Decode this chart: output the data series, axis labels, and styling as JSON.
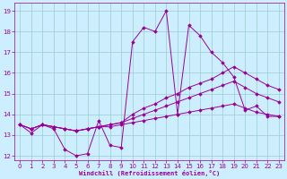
{
  "xlabel": "Windchill (Refroidissement éolien,°C)",
  "background_color": "#cceeff",
  "line_color": "#990099",
  "grid_color": "#99cccc",
  "xlim": [
    -0.5,
    23.5
  ],
  "ylim": [
    11.8,
    19.4
  ],
  "xticks": [
    0,
    1,
    2,
    3,
    4,
    5,
    6,
    7,
    8,
    9,
    10,
    11,
    12,
    13,
    14,
    15,
    16,
    17,
    18,
    19,
    20,
    21,
    22,
    23
  ],
  "yticks": [
    12,
    13,
    14,
    15,
    16,
    17,
    18,
    19
  ],
  "series": [
    [
      13.5,
      13.1,
      13.5,
      13.3,
      12.3,
      12.0,
      12.1,
      13.7,
      12.5,
      12.4,
      17.5,
      18.2,
      18.0,
      19.0,
      14.0,
      18.3,
      17.8,
      17.0,
      16.5,
      15.8,
      14.2,
      14.4,
      13.9,
      13.9
    ],
    [
      13.5,
      13.3,
      13.5,
      13.4,
      13.3,
      13.2,
      13.3,
      13.4,
      13.5,
      13.6,
      14.0,
      14.3,
      14.5,
      14.8,
      15.0,
      15.3,
      15.5,
      15.7,
      16.0,
      16.3,
      16.0,
      15.7,
      15.4,
      15.2
    ],
    [
      13.5,
      13.3,
      13.5,
      13.4,
      13.3,
      13.2,
      13.3,
      13.4,
      13.5,
      13.6,
      13.8,
      14.0,
      14.2,
      14.4,
      14.6,
      14.8,
      15.0,
      15.2,
      15.4,
      15.6,
      15.3,
      15.0,
      14.8,
      14.6
    ],
    [
      13.5,
      13.3,
      13.5,
      13.4,
      13.3,
      13.2,
      13.3,
      13.4,
      13.4,
      13.5,
      13.6,
      13.7,
      13.8,
      13.9,
      14.0,
      14.1,
      14.2,
      14.3,
      14.4,
      14.5,
      14.3,
      14.1,
      14.0,
      13.9
    ]
  ]
}
